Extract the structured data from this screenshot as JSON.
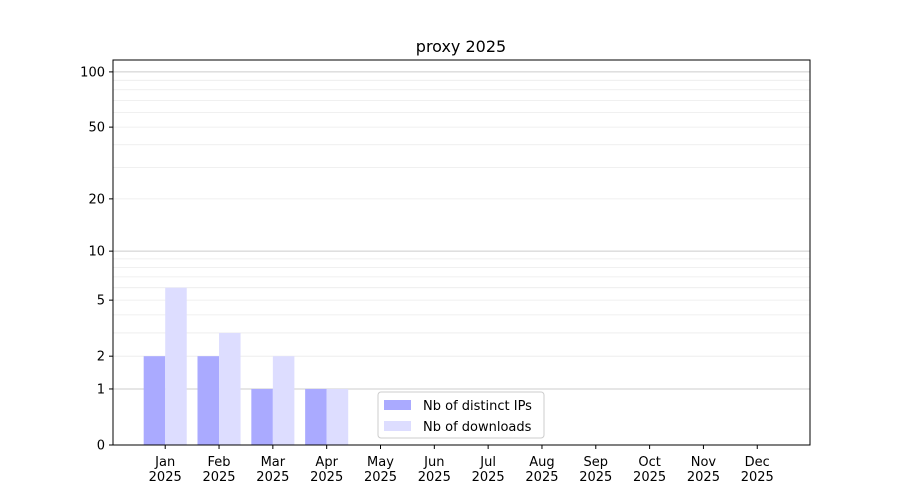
{
  "chart_data": {
    "type": "bar",
    "title": "proxy 2025",
    "xlabel": "",
    "ylabel": "",
    "categories": [
      "Jan\n2025",
      "Feb\n2025",
      "Mar\n2025",
      "Apr\n2025",
      "May\n2025",
      "Jun\n2025",
      "Jul\n2025",
      "Aug\n2025",
      "Sep\n2025",
      "Oct\n2025",
      "Nov\n2025",
      "Dec\n2025"
    ],
    "series": [
      {
        "name": "Nb of distinct IPs",
        "color": "#aaaaff",
        "values": [
          2,
          2,
          1,
          1,
          0,
          0,
          0,
          0,
          0,
          0,
          0,
          0
        ]
      },
      {
        "name": "Nb of downloads",
        "color": "#ddddff",
        "values": [
          6,
          3,
          2,
          1,
          0,
          0,
          0,
          0,
          0,
          0,
          0,
          0
        ]
      }
    ],
    "yscale": "log(1+y)",
    "yticks": [
      0,
      1,
      2,
      5,
      10,
      20,
      50,
      100
    ],
    "ytick_labels": [
      "0",
      "1",
      "2",
      "5",
      "10",
      "20",
      "50",
      "100"
    ],
    "ylim": [
      0,
      116
    ],
    "grid": true,
    "legend": "lower-center"
  }
}
